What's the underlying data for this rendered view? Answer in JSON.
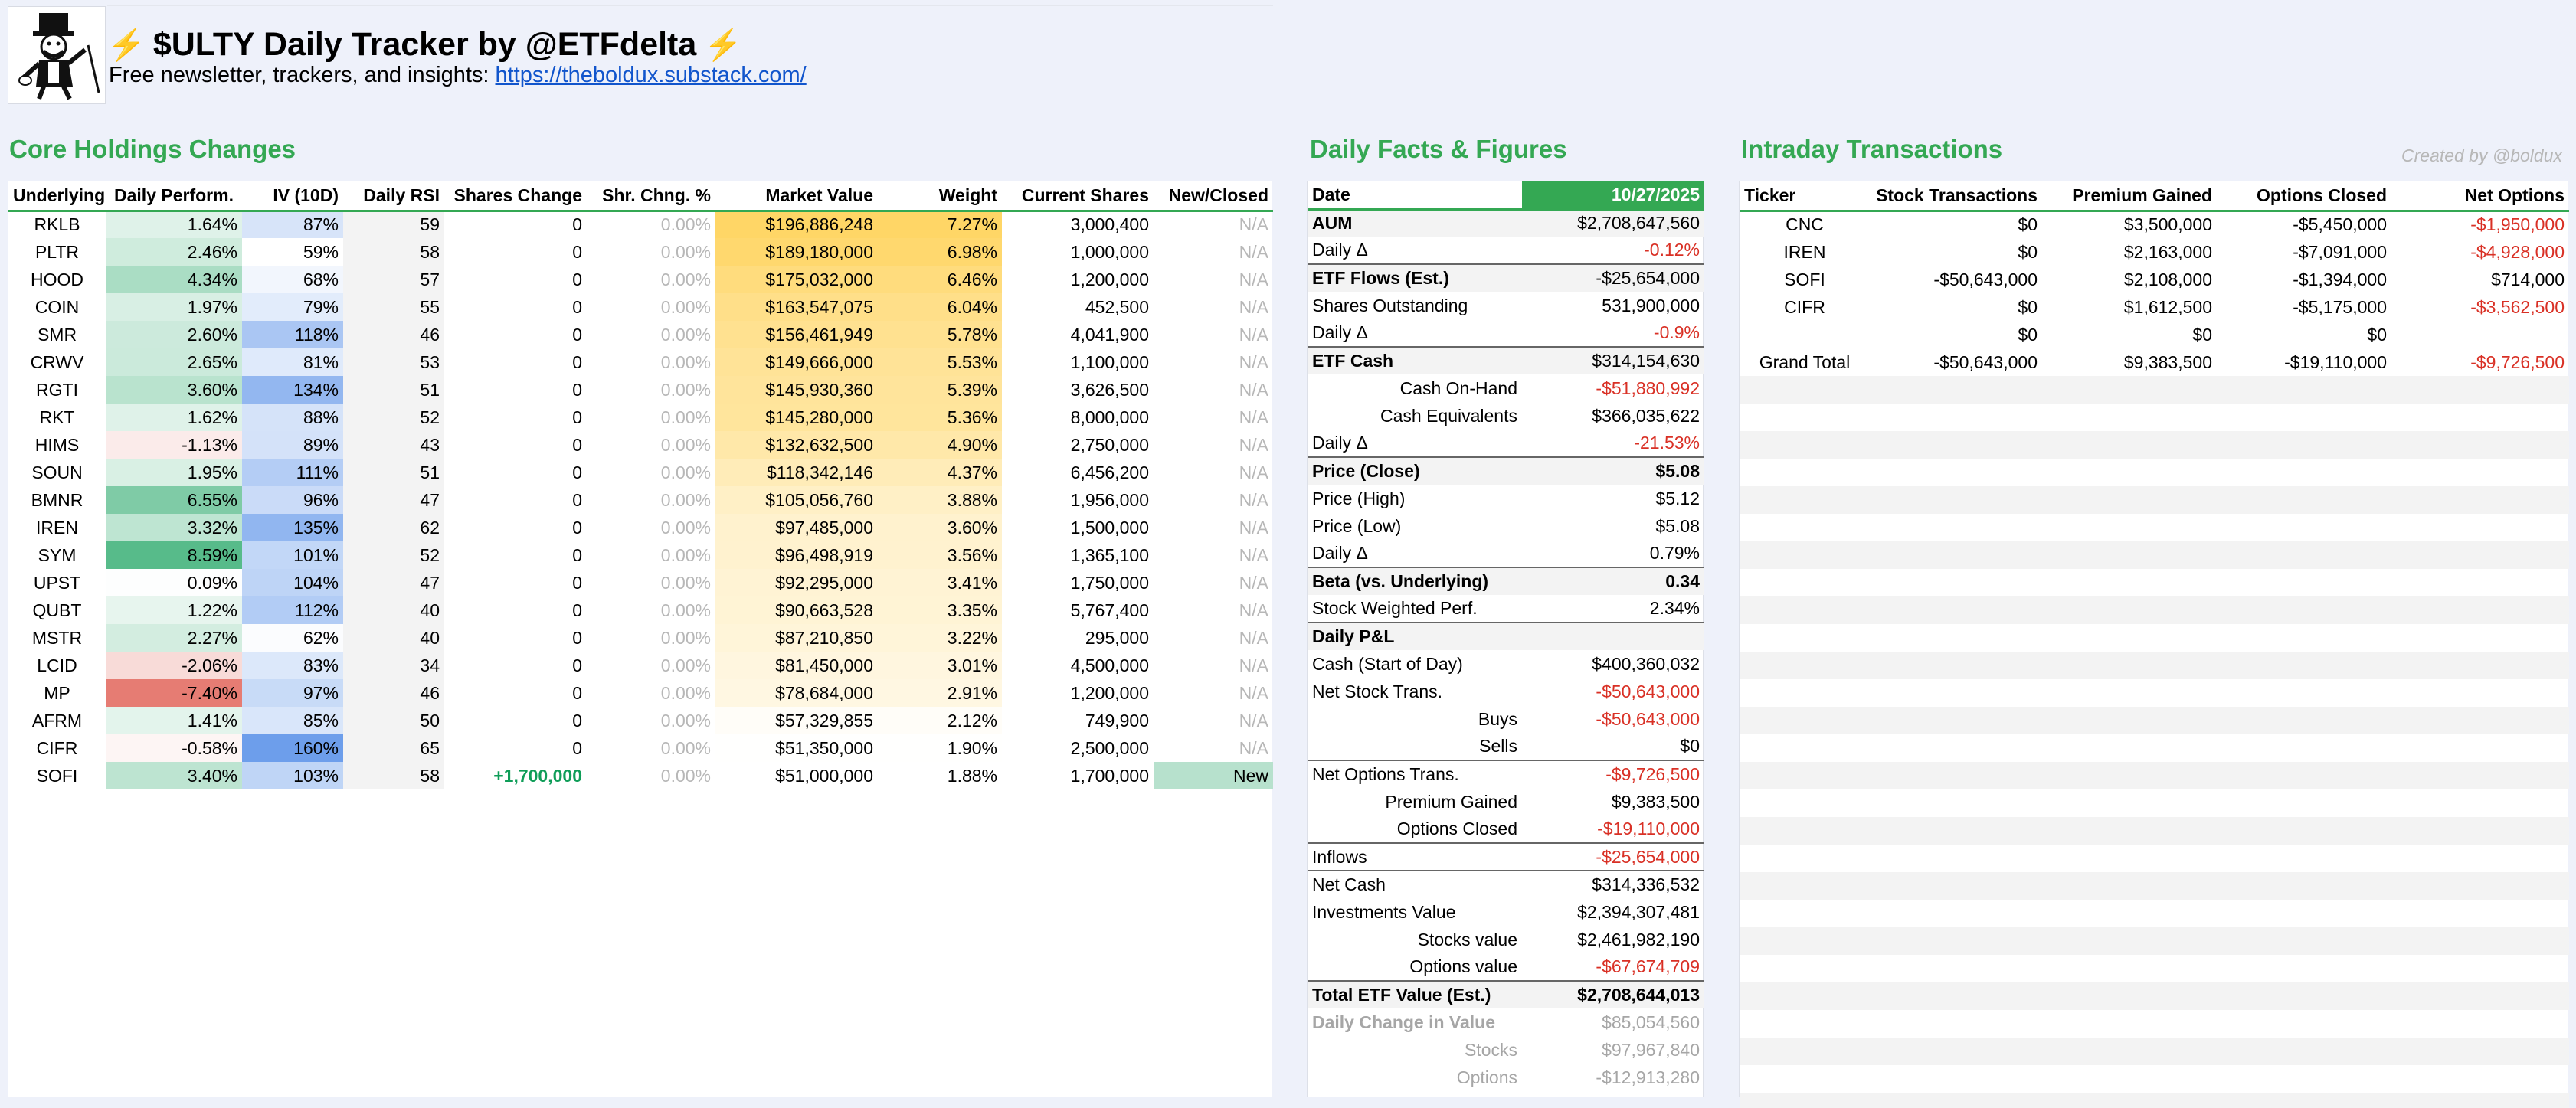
{
  "header": {
    "title": "$ULTY Daily Tracker by @ETFdelta",
    "bolt": "⚡",
    "subtitle_prefix": "Free newsletter, trackers, and insights: ",
    "link_text": "https://theboldux.substack.com/"
  },
  "core": {
    "section_title": "Core Holdings Changes",
    "columns": [
      "Underlying",
      "Daily Perform.",
      "IV (10D)",
      "Daily RSI",
      "Shares Change",
      "Shr. Chng. %",
      "Market Value",
      "Weight",
      "Current Shares",
      "New/Closed"
    ],
    "rows": [
      {
        "ticker": "RKLB",
        "perf": "1.64%",
        "iv": "87%",
        "rsi": "59",
        "chg": "0",
        "chgpct": "0.00%",
        "mv": "$196,886,248",
        "weight": "7.27%",
        "shares": "3,000,400",
        "status": "N/A"
      },
      {
        "ticker": "PLTR",
        "perf": "2.46%",
        "iv": "59%",
        "rsi": "58",
        "chg": "0",
        "chgpct": "0.00%",
        "mv": "$189,180,000",
        "weight": "6.98%",
        "shares": "1,000,000",
        "status": "N/A"
      },
      {
        "ticker": "HOOD",
        "perf": "4.34%",
        "iv": "68%",
        "rsi": "57",
        "chg": "0",
        "chgpct": "0.00%",
        "mv": "$175,032,000",
        "weight": "6.46%",
        "shares": "1,200,000",
        "status": "N/A"
      },
      {
        "ticker": "COIN",
        "perf": "1.97%",
        "iv": "79%",
        "rsi": "55",
        "chg": "0",
        "chgpct": "0.00%",
        "mv": "$163,547,075",
        "weight": "6.04%",
        "shares": "452,500",
        "status": "N/A"
      },
      {
        "ticker": "SMR",
        "perf": "2.60%",
        "iv": "118%",
        "rsi": "46",
        "chg": "0",
        "chgpct": "0.00%",
        "mv": "$156,461,949",
        "weight": "5.78%",
        "shares": "4,041,900",
        "status": "N/A"
      },
      {
        "ticker": "CRWV",
        "perf": "2.65%",
        "iv": "81%",
        "rsi": "53",
        "chg": "0",
        "chgpct": "0.00%",
        "mv": "$149,666,000",
        "weight": "5.53%",
        "shares": "1,100,000",
        "status": "N/A"
      },
      {
        "ticker": "RGTI",
        "perf": "3.60%",
        "iv": "134%",
        "rsi": "51",
        "chg": "0",
        "chgpct": "0.00%",
        "mv": "$145,930,360",
        "weight": "5.39%",
        "shares": "3,626,500",
        "status": "N/A"
      },
      {
        "ticker": "RKT",
        "perf": "1.62%",
        "iv": "88%",
        "rsi": "52",
        "chg": "0",
        "chgpct": "0.00%",
        "mv": "$145,280,000",
        "weight": "5.36%",
        "shares": "8,000,000",
        "status": "N/A"
      },
      {
        "ticker": "HIMS",
        "perf": "-1.13%",
        "iv": "89%",
        "rsi": "43",
        "chg": "0",
        "chgpct": "0.00%",
        "mv": "$132,632,500",
        "weight": "4.90%",
        "shares": "2,750,000",
        "status": "N/A"
      },
      {
        "ticker": "SOUN",
        "perf": "1.95%",
        "iv": "111%",
        "rsi": "51",
        "chg": "0",
        "chgpct": "0.00%",
        "mv": "$118,342,146",
        "weight": "4.37%",
        "shares": "6,456,200",
        "status": "N/A"
      },
      {
        "ticker": "BMNR",
        "perf": "6.55%",
        "iv": "96%",
        "rsi": "47",
        "chg": "0",
        "chgpct": "0.00%",
        "mv": "$105,056,760",
        "weight": "3.88%",
        "shares": "1,956,000",
        "status": "N/A"
      },
      {
        "ticker": "IREN",
        "perf": "3.32%",
        "iv": "135%",
        "rsi": "62",
        "chg": "0",
        "chgpct": "0.00%",
        "mv": "$97,485,000",
        "weight": "3.60%",
        "shares": "1,500,000",
        "status": "N/A"
      },
      {
        "ticker": "SYM",
        "perf": "8.59%",
        "iv": "101%",
        "rsi": "52",
        "chg": "0",
        "chgpct": "0.00%",
        "mv": "$96,498,919",
        "weight": "3.56%",
        "shares": "1,365,100",
        "status": "N/A"
      },
      {
        "ticker": "UPST",
        "perf": "0.09%",
        "iv": "104%",
        "rsi": "47",
        "chg": "0",
        "chgpct": "0.00%",
        "mv": "$92,295,000",
        "weight": "3.41%",
        "shares": "1,750,000",
        "status": "N/A"
      },
      {
        "ticker": "QUBT",
        "perf": "1.22%",
        "iv": "112%",
        "rsi": "40",
        "chg": "0",
        "chgpct": "0.00%",
        "mv": "$90,663,528",
        "weight": "3.35%",
        "shares": "5,767,400",
        "status": "N/A"
      },
      {
        "ticker": "MSTR",
        "perf": "2.27%",
        "iv": "62%",
        "rsi": "40",
        "chg": "0",
        "chgpct": "0.00%",
        "mv": "$87,210,850",
        "weight": "3.22%",
        "shares": "295,000",
        "status": "N/A"
      },
      {
        "ticker": "LCID",
        "perf": "-2.06%",
        "iv": "83%",
        "rsi": "34",
        "chg": "0",
        "chgpct": "0.00%",
        "mv": "$81,450,000",
        "weight": "3.01%",
        "shares": "4,500,000",
        "status": "N/A"
      },
      {
        "ticker": "MP",
        "perf": "-7.40%",
        "iv": "97%",
        "rsi": "46",
        "chg": "0",
        "chgpct": "0.00%",
        "mv": "$78,684,000",
        "weight": "2.91%",
        "shares": "1,200,000",
        "status": "N/A"
      },
      {
        "ticker": "AFRM",
        "perf": "1.41%",
        "iv": "85%",
        "rsi": "50",
        "chg": "0",
        "chgpct": "0.00%",
        "mv": "$57,329,855",
        "weight": "2.12%",
        "shares": "749,900",
        "status": "N/A"
      },
      {
        "ticker": "CIFR",
        "perf": "-0.58%",
        "iv": "160%",
        "rsi": "65",
        "chg": "0",
        "chgpct": "0.00%",
        "mv": "$51,350,000",
        "weight": "1.90%",
        "shares": "2,500,000",
        "status": "N/A"
      },
      {
        "ticker": "SOFI",
        "perf": "3.40%",
        "iv": "103%",
        "rsi": "58",
        "chg": "+1,700,000",
        "chgpct": "0.00%",
        "mv": "$51,000,000",
        "weight": "1.88%",
        "shares": "1,700,000",
        "status": "New"
      }
    ]
  },
  "facts": {
    "section_title": "Daily Facts & Figures",
    "date_label": "Date",
    "date_value": "10/27/2025",
    "rows": [
      {
        "label": "AUM",
        "value": "$2,708,647,560",
        "style": "bold shade"
      },
      {
        "label": "Daily Δ",
        "value": "-0.12%",
        "style": "neg"
      },
      {
        "label": "ETF Flows (Est.)",
        "value": "-$25,654,000",
        "style": "bold shade topborder"
      },
      {
        "label": "Shares Outstanding",
        "value": "531,900,000",
        "style": ""
      },
      {
        "label": "Daily Δ",
        "value": "-0.9%",
        "style": "neg"
      },
      {
        "label": "ETF Cash",
        "value": "$314,154,630",
        "style": "bold shade topborder"
      },
      {
        "label": "Cash On-Hand",
        "value": "-$51,880,992",
        "style": "ind neg"
      },
      {
        "label": "Cash Equivalents",
        "value": "$366,035,622",
        "style": "ind"
      },
      {
        "label": "Daily Δ",
        "value": "-21.53%",
        "style": "neg"
      },
      {
        "label": "Price (Close)",
        "value": "$5.08",
        "style": "bold shade topborder boldval"
      },
      {
        "label": "Price (High)",
        "value": "$5.12",
        "style": ""
      },
      {
        "label": "Price (Low)",
        "value": "$5.08",
        "style": ""
      },
      {
        "label": "Daily Δ",
        "value": "0.79%",
        "style": ""
      },
      {
        "label": "Beta (vs. Underlying)",
        "value": "0.34",
        "style": "bold shade topborder boldval"
      },
      {
        "label": "Stock Weighted Perf.",
        "value": "2.34%",
        "style": ""
      },
      {
        "label": "Daily P&L",
        "value": "",
        "style": "bold shade topborder"
      },
      {
        "label": "Cash (Start of Day)",
        "value": "$400,360,032",
        "style": ""
      },
      {
        "label": "Net Stock Trans.",
        "value": "-$50,643,000",
        "style": "neg"
      },
      {
        "label": "Buys",
        "value": "-$50,643,000",
        "style": "ind neg"
      },
      {
        "label": "Sells",
        "value": "$0",
        "style": "ind"
      },
      {
        "label": "Net Options Trans.",
        "value": "-$9,726,500",
        "style": "neg topborder"
      },
      {
        "label": "Premium Gained",
        "value": "$9,383,500",
        "style": "ind"
      },
      {
        "label": "Options Closed",
        "value": "-$19,110,000",
        "style": "ind neg"
      },
      {
        "label": "Inflows",
        "value": "-$25,654,000",
        "style": "neg topborder"
      },
      {
        "label": "Net Cash",
        "value": "$314,336,532",
        "style": "topborder"
      },
      {
        "label": "Investments Value",
        "value": "$2,394,307,481",
        "style": ""
      },
      {
        "label": "Stocks value",
        "value": "$2,461,982,190",
        "style": "ind"
      },
      {
        "label": "Options value",
        "value": "-$67,674,709",
        "style": "ind neg"
      },
      {
        "label": "Total ETF Value (Est.)",
        "value": "$2,708,644,013",
        "style": "bold shade topborder boldval"
      },
      {
        "label": "Daily Change in Value",
        "value": "$85,054,560",
        "style": "grey greybold"
      },
      {
        "label": "Stocks",
        "value": "$97,967,840",
        "style": "grey ind"
      },
      {
        "label": "Options",
        "value": "-$12,913,280",
        "style": "grey ind"
      }
    ]
  },
  "intraday": {
    "section_title": "Intraday Transactions",
    "created_by": "Created by @boldux",
    "columns": [
      "Ticker",
      "Stock Transactions",
      "Premium Gained",
      "Options Closed",
      "Net Options"
    ],
    "rows": [
      {
        "ticker": "CNC",
        "stock": "$0",
        "premium": "$3,500,000",
        "closed": "-$5,450,000",
        "net": "-$1,950,000",
        "netneg": true
      },
      {
        "ticker": "IREN",
        "stock": "$0",
        "premium": "$2,163,000",
        "closed": "-$7,091,000",
        "net": "-$4,928,000",
        "netneg": true
      },
      {
        "ticker": "SOFI",
        "stock": "-$50,643,000",
        "premium": "$2,108,000",
        "closed": "-$1,394,000",
        "net": "$714,000",
        "netneg": false
      },
      {
        "ticker": "CIFR",
        "stock": "$0",
        "premium": "$1,612,500",
        "closed": "-$5,175,000",
        "net": "-$3,562,500",
        "netneg": true
      },
      {
        "ticker": "",
        "stock": "$0",
        "premium": "$0",
        "closed": "$0",
        "net": "",
        "netneg": false
      },
      {
        "ticker": "Grand Total",
        "stock": "-$50,643,000",
        "premium": "$9,383,500",
        "closed": "-$19,110,000",
        "net": "-$9,726,500",
        "netneg": true
      }
    ]
  }
}
